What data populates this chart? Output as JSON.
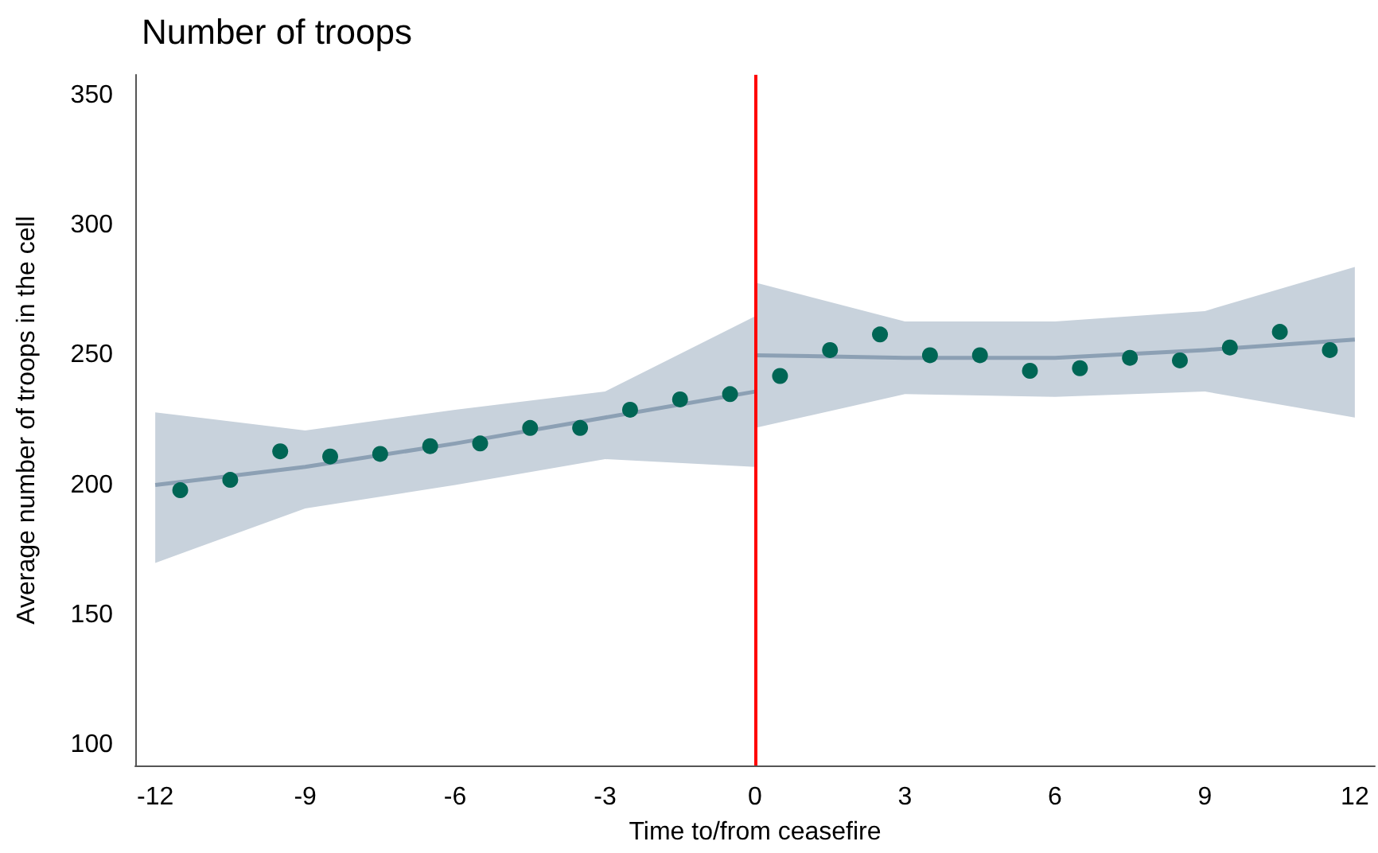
{
  "chart_data": {
    "type": "scatter",
    "title": "Number of troops",
    "xlabel": "Time to/from ceasefire",
    "ylabel": "Average number of troops in the cell",
    "xlim": [
      -12.4,
      12.4
    ],
    "xticks": [
      -12,
      -9,
      -6,
      -3,
      0,
      3,
      6,
      9,
      12
    ],
    "ylim": [
      92,
      358
    ],
    "yticks": [
      100,
      150,
      200,
      250,
      300,
      350
    ],
    "grid": false,
    "series": [
      {
        "color": "#006655",
        "marker": "circle",
        "x": [
          -11.5,
          -10.5,
          -9.5,
          -8.5,
          -7.5,
          -6.5,
          -5.5,
          -4.5,
          -3.5,
          -2.5,
          -1.5,
          -0.5,
          0.5,
          1.5,
          2.5,
          3.5,
          4.5,
          5.5,
          6.5,
          7.5,
          8.5,
          9.5,
          10.5,
          11.5
        ],
        "values": [
          198,
          202,
          213,
          211,
          212,
          215,
          216,
          222,
          222,
          229,
          233,
          235,
          242,
          252,
          258,
          250,
          250,
          244,
          245,
          249,
          248,
          253,
          259,
          252
        ]
      },
      {
        "type": "line",
        "color": "#8ca0b4",
        "marker": "none",
        "x": [
          -12,
          -9,
          -6,
          -3,
          0
        ],
        "values": [
          200,
          207,
          216,
          226,
          236
        ],
        "lower": [
          170,
          191,
          200,
          210,
          207
        ],
        "upper": [
          228,
          221,
          229,
          236,
          265
        ]
      },
      {
        "type": "line",
        "color": "#8ca0b4",
        "marker": "none",
        "x": [
          0,
          3,
          6,
          9,
          12
        ],
        "values": [
          250,
          249,
          249,
          252,
          256
        ],
        "lower": [
          222,
          235,
          234,
          236,
          226
        ],
        "upper": [
          278,
          263,
          263,
          267,
          284
        ]
      }
    ],
    "ref_lines": [
      {
        "axis": "x",
        "value": 0,
        "color": "#ff0000",
        "line_style": "solid"
      }
    ]
  }
}
